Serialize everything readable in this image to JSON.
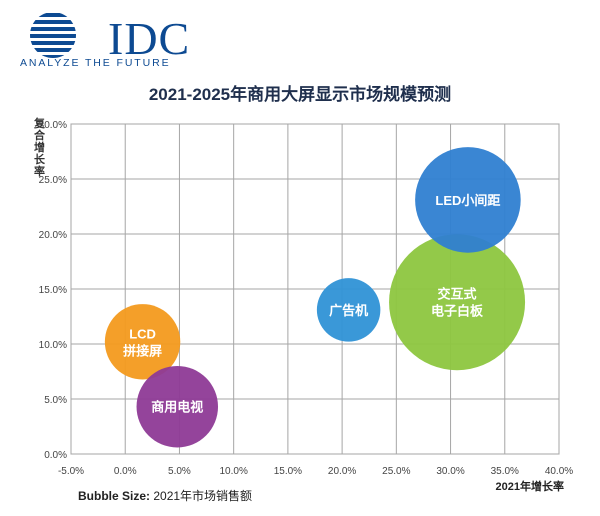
{
  "logo": {
    "brand": "IDC",
    "tagline": "ANALYZE THE FUTURE",
    "brand_color": "#0d4a92"
  },
  "chart_data": {
    "type": "bubble",
    "title": "2021-2025年商用大屏显示市场规模预测",
    "xlabel": "2021年增长率",
    "ylabel": "复合增长率",
    "xlim": [
      -0.05,
      0.4
    ],
    "ylim": [
      0.0,
      0.3
    ],
    "x_ticks": [
      -0.05,
      0.0,
      0.05,
      0.1,
      0.15,
      0.2,
      0.25,
      0.3,
      0.35,
      0.4
    ],
    "y_ticks": [
      0.0,
      0.05,
      0.1,
      0.15,
      0.2,
      0.25,
      0.3
    ],
    "x_tick_labels": [
      "-5.0%",
      "0.0%",
      "5.0%",
      "10.0%",
      "15.0%",
      "20.0%",
      "25.0%",
      "30.0%",
      "35.0%",
      "40.0%"
    ],
    "y_tick_labels": [
      "0.0%",
      "5.0%",
      "10.0%",
      "15.0%",
      "20.0%",
      "25.0%",
      "30.0%"
    ],
    "grid": true,
    "bubble_size_label": {
      "prefix": "Bubble Size:",
      "text": "2021年市场销售额"
    },
    "series": [
      {
        "label_lines": [
          "LCD",
          "拼接屏"
        ],
        "x": 0.016,
        "y": 0.102,
        "size": 0.24,
        "color": "#f39a1e"
      },
      {
        "label_lines": [
          "商用电视"
        ],
        "x": 0.048,
        "y": 0.043,
        "size": 0.28,
        "color": "#8e3a96"
      },
      {
        "label_lines": [
          "广告机"
        ],
        "x": 0.206,
        "y": 0.131,
        "size": 0.17,
        "color": "#2f92d6"
      },
      {
        "label_lines": [
          "交互式",
          "电子白板"
        ],
        "x": 0.306,
        "y": 0.138,
        "size": 0.78,
        "color": "#8dc63f"
      },
      {
        "label_lines": [
          "LED小间距"
        ],
        "x": 0.316,
        "y": 0.231,
        "size": 0.47,
        "color": "#2f7fd1"
      }
    ]
  }
}
